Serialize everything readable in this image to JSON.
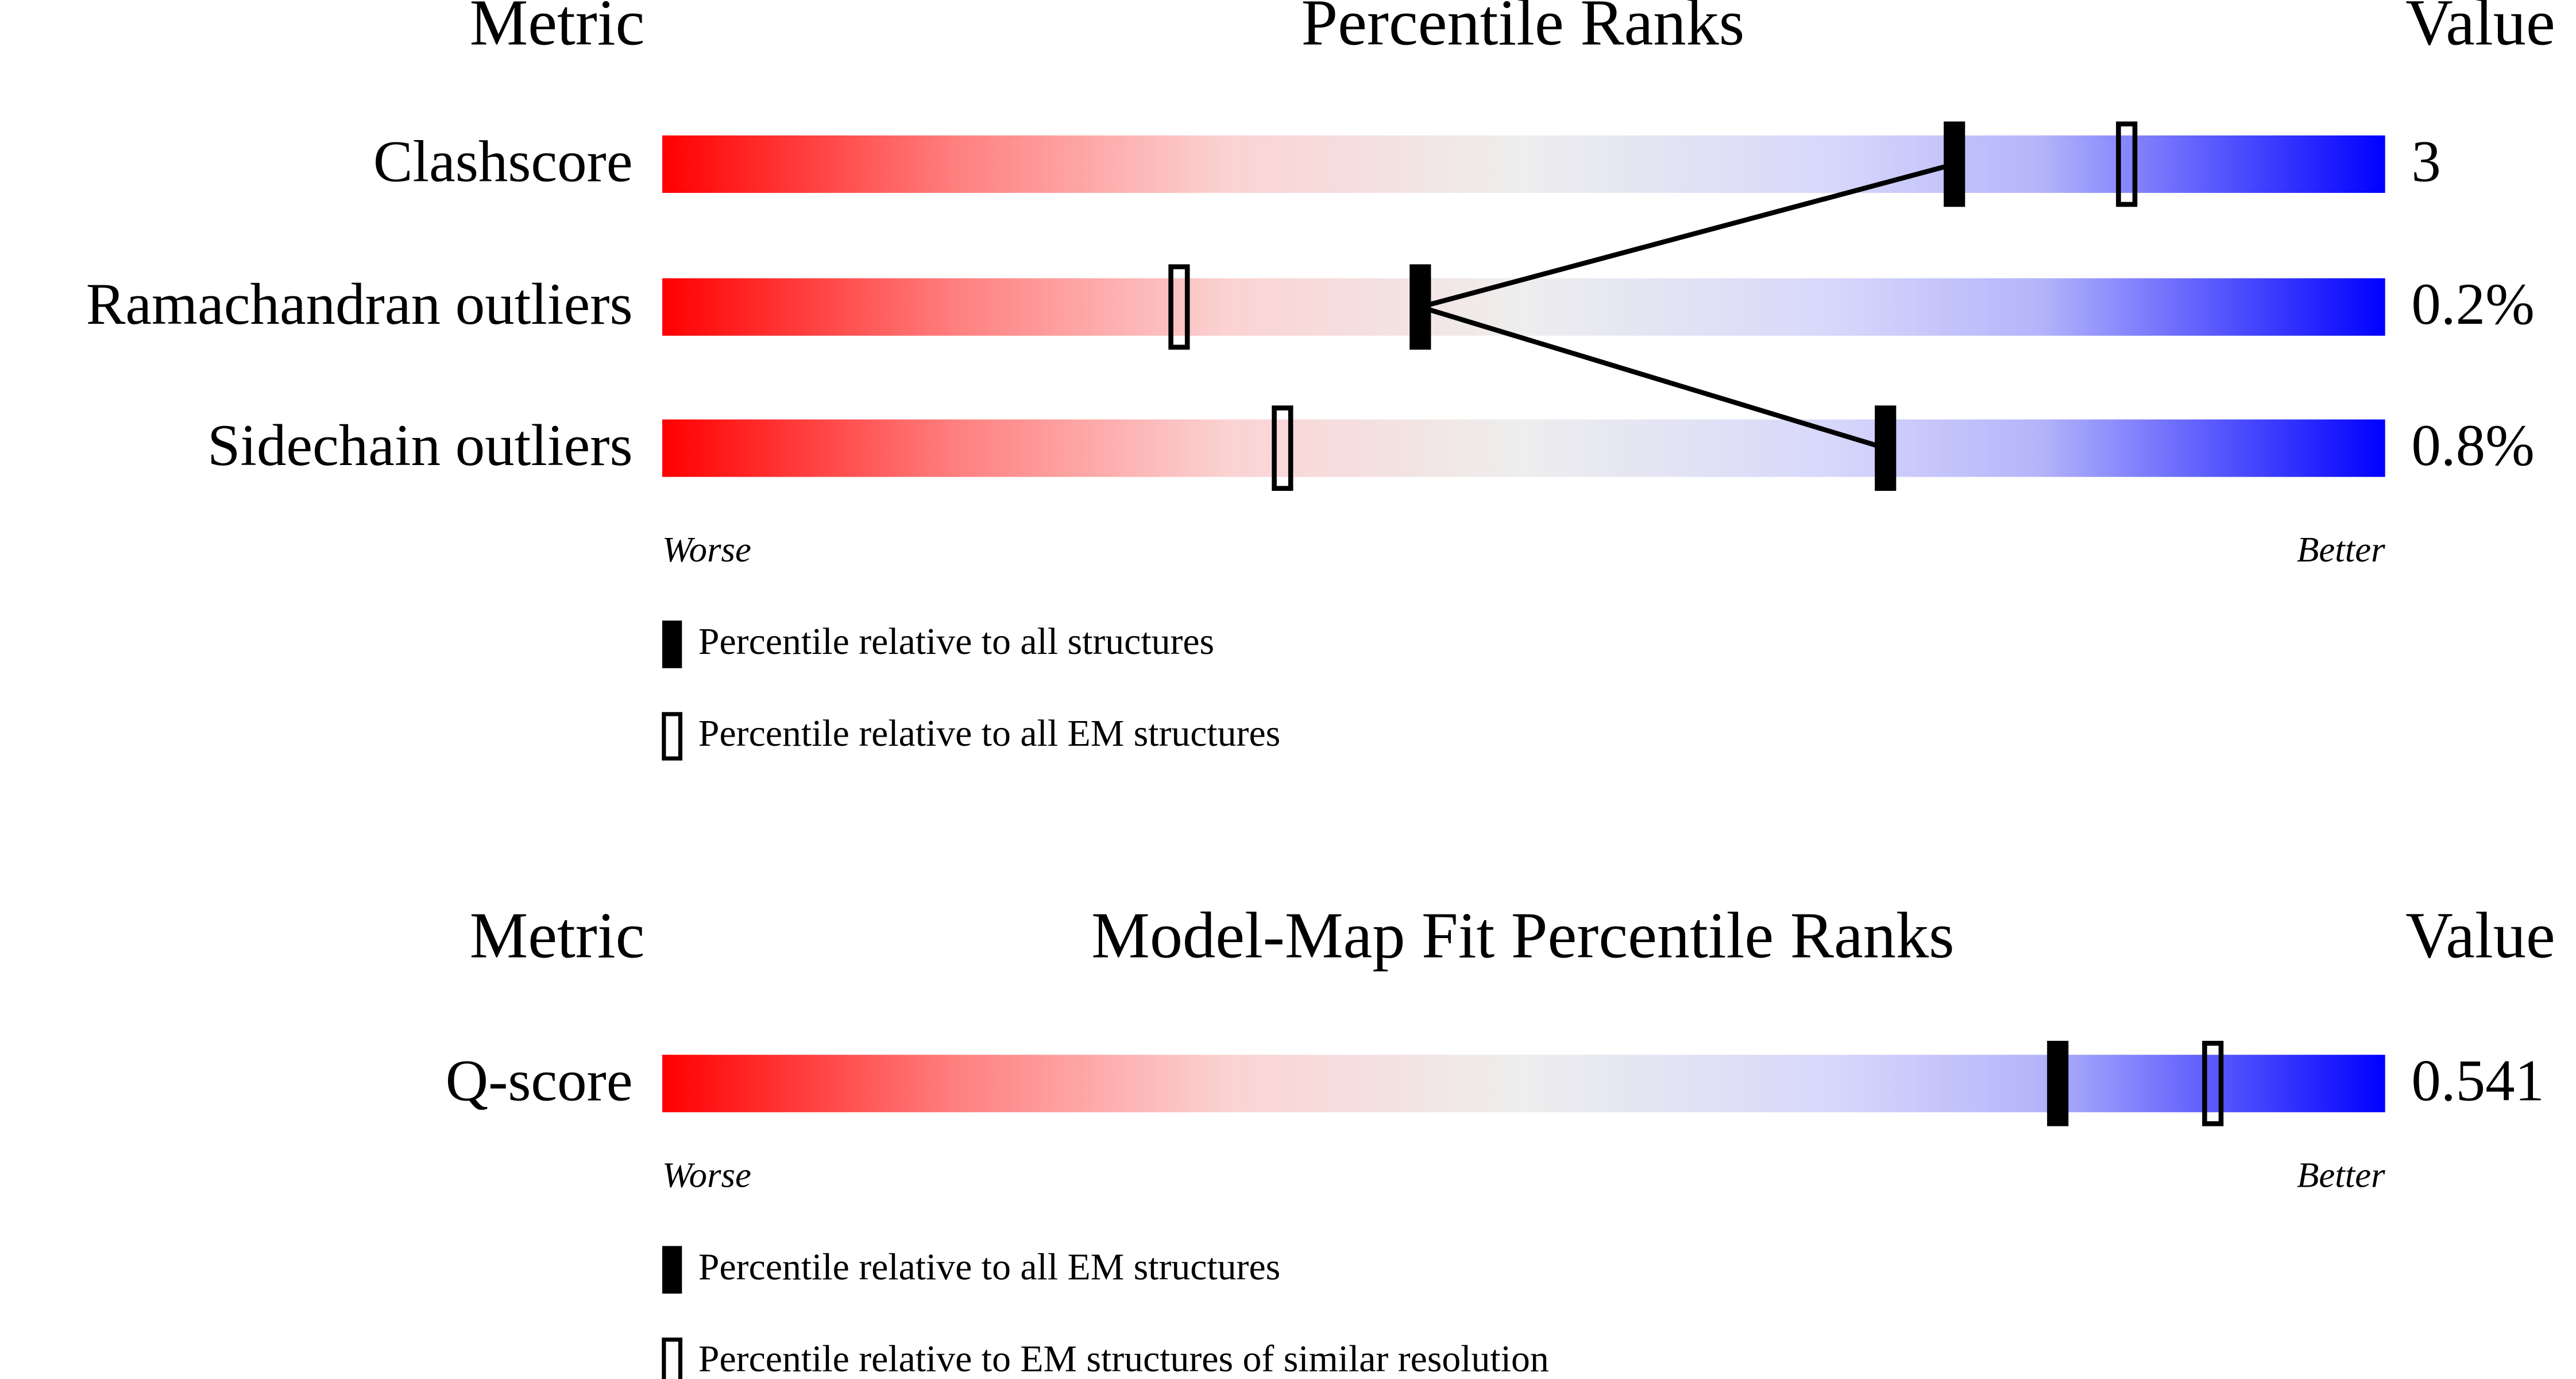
{
  "panels": [
    {
      "header": {
        "metric": "Metric",
        "title": "Percentile Ranks",
        "value": "Value"
      },
      "rows": [
        {
          "metric": "Clashscore",
          "value": "3",
          "percentiles": [
            75,
            85
          ]
        },
        {
          "metric": "Ramachandran outliers",
          "value": "0.2%",
          "percentiles": [
            44,
            30
          ]
        },
        {
          "metric": "Sidechain outliers",
          "value": "0.8%",
          "percentiles": [
            71,
            36
          ]
        }
      ],
      "worse": "Worse",
      "better": "Better",
      "legend": [
        "Percentile relative to all structures",
        "Percentile relative to all EM structures"
      ]
    },
    {
      "header": {
        "metric": "Metric",
        "title": "Model-Map Fit Percentile Ranks",
        "value": "Value"
      },
      "rows": [
        {
          "metric": "Q-score",
          "value": "0.541",
          "percentiles": [
            81,
            90
          ]
        }
      ],
      "worse": "Worse",
      "better": "Better",
      "legend": [
        "Percentile relative to all EM structures",
        "Percentile relative to EM structures of similar resolution"
      ]
    }
  ]
}
